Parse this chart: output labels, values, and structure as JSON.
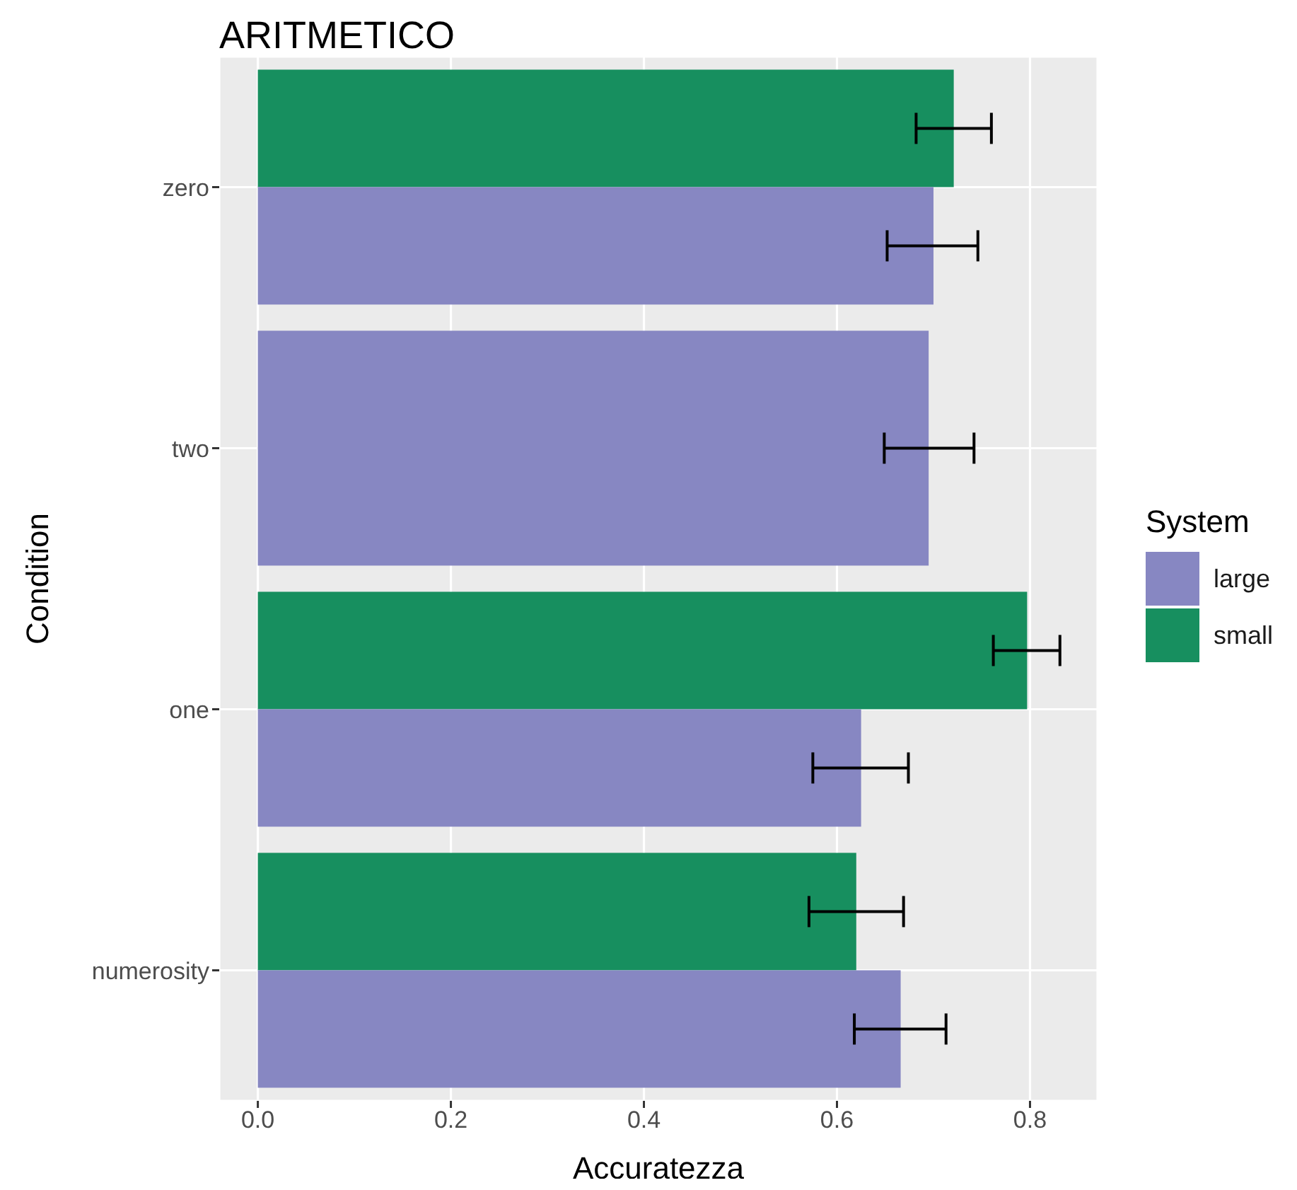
{
  "chart_data": {
    "type": "bar",
    "orientation": "horizontal",
    "title": "ARITMETICO",
    "xlabel": "Accuratezza",
    "ylabel": "Condition",
    "legend_title": "System",
    "categories": [
      "zero",
      "two",
      "one",
      "numerosity"
    ],
    "series": [
      {
        "name": "large",
        "color": "#8787c2",
        "values": [
          0.7,
          0.695,
          0.625,
          0.666
        ],
        "errors": [
          [
            0.652,
            0.746
          ],
          [
            0.649,
            0.742
          ],
          [
            0.575,
            0.674
          ],
          [
            0.618,
            0.713
          ]
        ]
      },
      {
        "name": "small",
        "color": "#178f5f",
        "values": [
          0.721,
          null,
          0.797,
          0.62
        ],
        "errors": [
          [
            0.682,
            0.76
          ],
          null,
          [
            0.762,
            0.831
          ],
          [
            0.571,
            0.669
          ]
        ]
      }
    ],
    "xlim": [
      -0.04,
      0.87
    ],
    "xticks": [
      {
        "value": 0,
        "label": "0.0"
      },
      0.2,
      0.4,
      0.6,
      0.8
    ],
    "grid": true,
    "legend": "right"
  }
}
